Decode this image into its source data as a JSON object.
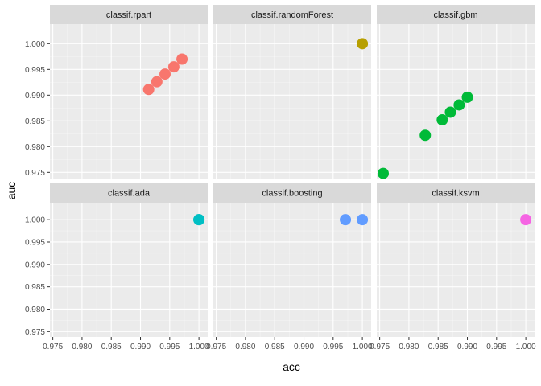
{
  "chart_data": {
    "type": "scatter",
    "xlabel": "acc",
    "ylabel": "auc",
    "xlim": [
      0.9745,
      1.0015
    ],
    "ylim": [
      0.9738,
      1.0038
    ],
    "x_ticks": [
      "0.975",
      "0.980",
      "0.985",
      "0.990",
      "0.995",
      "1.000"
    ],
    "y_ticks": [
      "0.975",
      "0.980",
      "0.985",
      "0.990",
      "0.995",
      "1.000"
    ],
    "grid": true,
    "legend": "none",
    "colors": {
      "panel_bg": "#ebebeb",
      "strip_bg": "#d9d9d9",
      "grid_major": "#ffffff"
    },
    "facets": [
      {
        "name": "classif.rpart",
        "color": "#F8766D",
        "points": [
          [
            0.9914,
            0.9911
          ],
          [
            0.9928,
            0.9926
          ],
          [
            0.9942,
            0.9941
          ],
          [
            0.9957,
            0.9955
          ],
          [
            0.9971,
            0.997
          ]
        ]
      },
      {
        "name": "classif.randomForest",
        "color": "#B79F00",
        "points": [
          [
            1.0,
            1.0
          ]
        ]
      },
      {
        "name": "classif.gbm",
        "color": "#00BA38",
        "points": [
          [
            0.9756,
            0.9748
          ],
          [
            0.9828,
            0.9822
          ],
          [
            0.9857,
            0.9852
          ],
          [
            0.9871,
            0.9867
          ],
          [
            0.9886,
            0.9881
          ],
          [
            0.99,
            0.9896
          ]
        ]
      },
      {
        "name": "classif.ada",
        "color": "#00BFC4",
        "points": [
          [
            1.0,
            1.0
          ],
          [
            1.0,
            1.0
          ]
        ]
      },
      {
        "name": "classif.boosting",
        "color": "#619CFF",
        "points": [
          [
            0.9971,
            1.0
          ],
          [
            1.0,
            1.0
          ]
        ]
      },
      {
        "name": "classif.ksvm",
        "color": "#F564E3",
        "points": [
          [
            1.0,
            1.0
          ]
        ]
      }
    ]
  }
}
